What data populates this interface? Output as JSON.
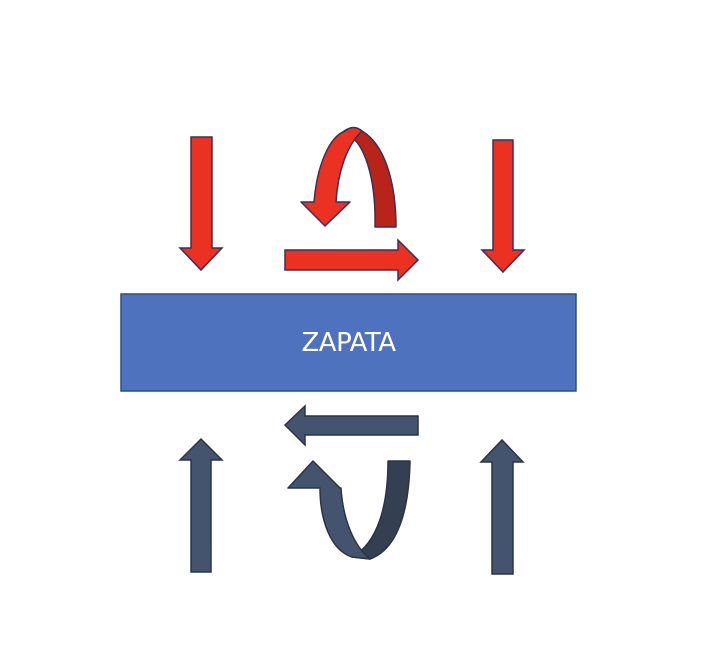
{
  "block": {
    "label": "ZAPATA",
    "fill": "#4f72bf",
    "border": "#2f4f7a",
    "text_color": "#ffffff"
  },
  "colors": {
    "red": "#ea3122",
    "red_dark": "#b8231a",
    "red_stroke": "#3f2e55",
    "slate": "#45546e",
    "slate_dark": "#343f51",
    "slate_stroke": "#2b3445",
    "background": "#ffffff"
  },
  "arrows": {
    "top": [
      "down-arrow-icon",
      "curved-arrow-icon",
      "right-arrow-icon",
      "down-arrow-icon"
    ],
    "bottom": [
      "up-arrow-icon",
      "left-arrow-icon",
      "curved-arrow-icon",
      "up-arrow-icon"
    ]
  }
}
